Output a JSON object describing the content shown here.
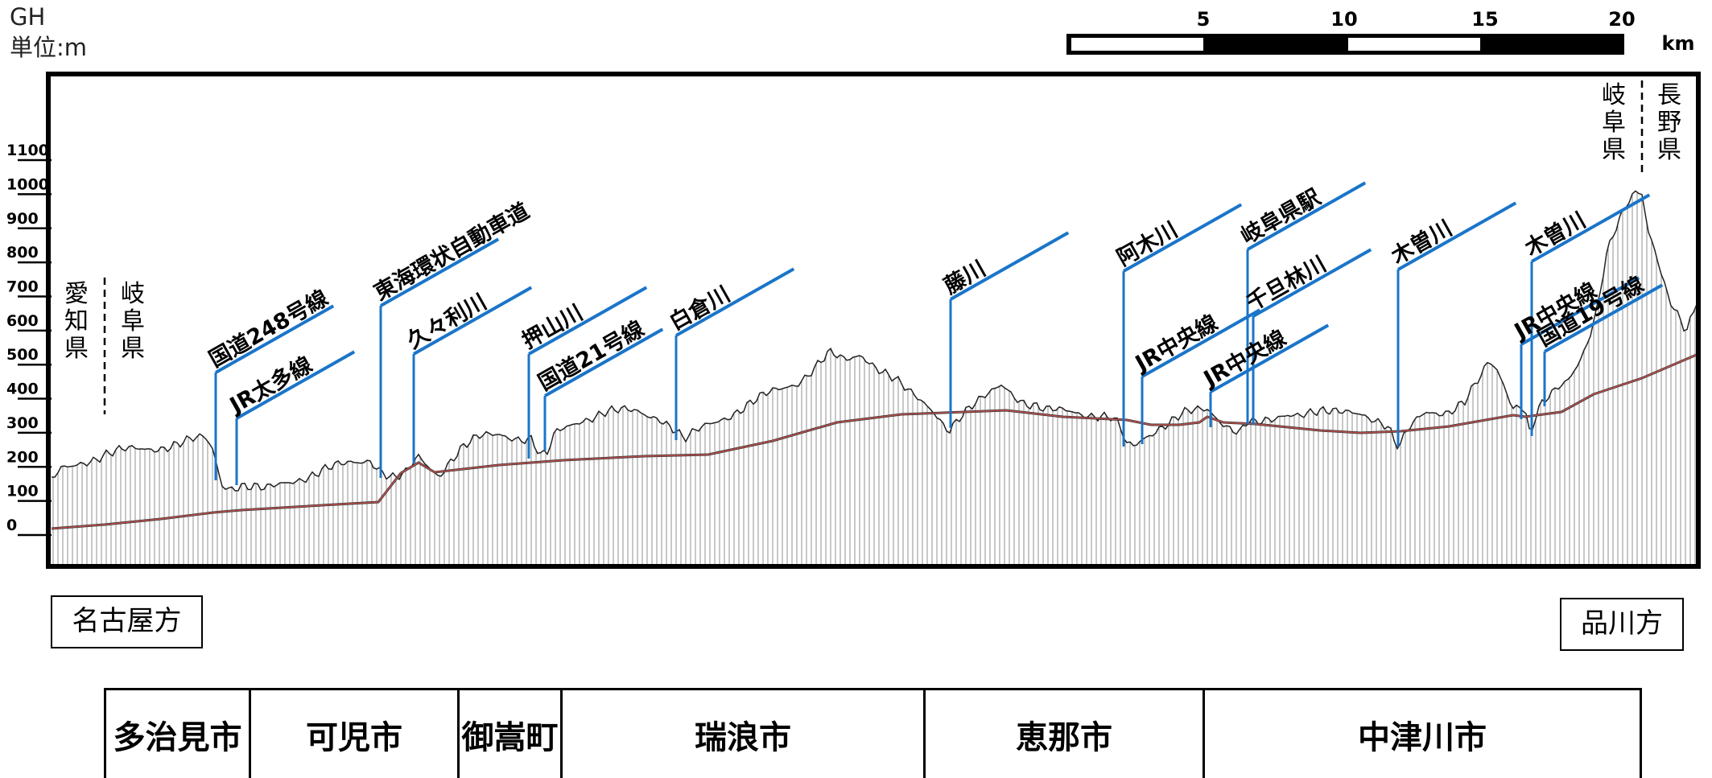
{
  "header": {
    "code": "GH",
    "unit": "単位:m"
  },
  "scale_bar": {
    "ticks": [
      "5",
      "10",
      "15",
      "20"
    ],
    "unit": "km"
  },
  "y_axis": {
    "ticks": [
      "1100",
      "1000",
      "900",
      "800",
      "700",
      "600",
      "500",
      "400",
      "300",
      "200",
      "100",
      "0"
    ],
    "range": [
      0,
      1100
    ]
  },
  "prefecture_boundaries": [
    {
      "left": "愛知県",
      "right": "岐阜県"
    },
    {
      "left": "岐阜県",
      "right": "長野県"
    }
  ],
  "features": [
    {
      "label": "国道248号線",
      "type": "road"
    },
    {
      "label": "JR太多線",
      "type": "rail"
    },
    {
      "label": "東海環状自動車道",
      "type": "road"
    },
    {
      "label": "久々利川",
      "type": "river"
    },
    {
      "label": "押山川",
      "type": "river"
    },
    {
      "label": "国道21号線",
      "type": "road"
    },
    {
      "label": "白倉川",
      "type": "river"
    },
    {
      "label": "藤川",
      "type": "river"
    },
    {
      "label": "阿木川",
      "type": "river"
    },
    {
      "label": "JR中央線",
      "type": "rail"
    },
    {
      "label": "岐阜県駅",
      "type": "station"
    },
    {
      "label": "千旦林川",
      "type": "river"
    },
    {
      "label": "JR中央線",
      "type": "rail"
    },
    {
      "label": "木曽川",
      "type": "river"
    },
    {
      "label": "木曽川",
      "type": "river"
    },
    {
      "label": "JR中央線",
      "type": "rail"
    },
    {
      "label": "国道19号線",
      "type": "road"
    }
  ],
  "directions": {
    "left": "名古屋方",
    "right": "品川方"
  },
  "municipalities": [
    {
      "name": "多治見市"
    },
    {
      "name": "可児市"
    },
    {
      "name": "御嵩町"
    },
    {
      "name": "瑞浪市"
    },
    {
      "name": "恵那市"
    },
    {
      "name": "中津川市"
    }
  ],
  "colors": {
    "feature_line": "#1a75c9",
    "track_line": "#c0504d",
    "ground_line": "#222222",
    "frame": "#000000"
  }
}
